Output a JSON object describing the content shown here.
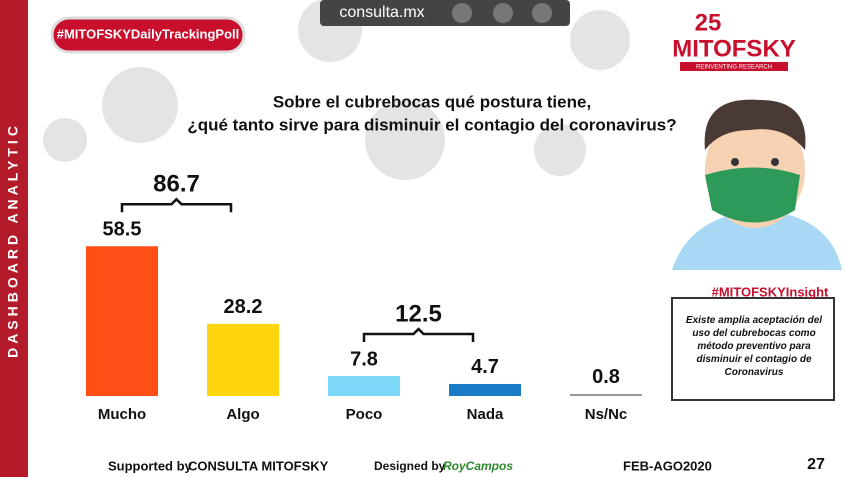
{
  "header": {
    "hashtag": "#MITOFSKYDailyTrackingPoll",
    "site": "consulta.mx",
    "logo_number": "25",
    "logo_name": "MITOFSKY",
    "logo_tagline": "REINVENTING RESEARCH",
    "side_label": "DASHBOARD ANALYTIC"
  },
  "chart_data": {
    "type": "bar",
    "title": [
      "Sobre el cubrebocas qué postura tiene,",
      "¿qué tanto sirve para disminuir el contagio del coronavirus?"
    ],
    "categories": [
      "Mucho",
      "Algo",
      "Poco",
      "Nada",
      "Ns/Nc"
    ],
    "values": [
      58.5,
      28.2,
      7.8,
      4.7,
      0.8
    ],
    "colors": [
      "#ff4f14",
      "#ffd510",
      "#7dd8f7",
      "#1a7cc6",
      "#9a9a9a"
    ],
    "group_totals": [
      86.7,
      12.5
    ]
  },
  "insight": {
    "title": "#MITOFSKYInsight",
    "text": "Existe amplia aceptación del uso del cubrebocas como método preventivo para disminuir el contagio de Coronavirus"
  },
  "footer": {
    "supported_label": "Supported by",
    "supported_name": "CONSULTA  MITOFSKY",
    "designed_label": "Designed by",
    "designer": "RoyCampos",
    "period": "FEB-AGO2020",
    "page": "27"
  }
}
